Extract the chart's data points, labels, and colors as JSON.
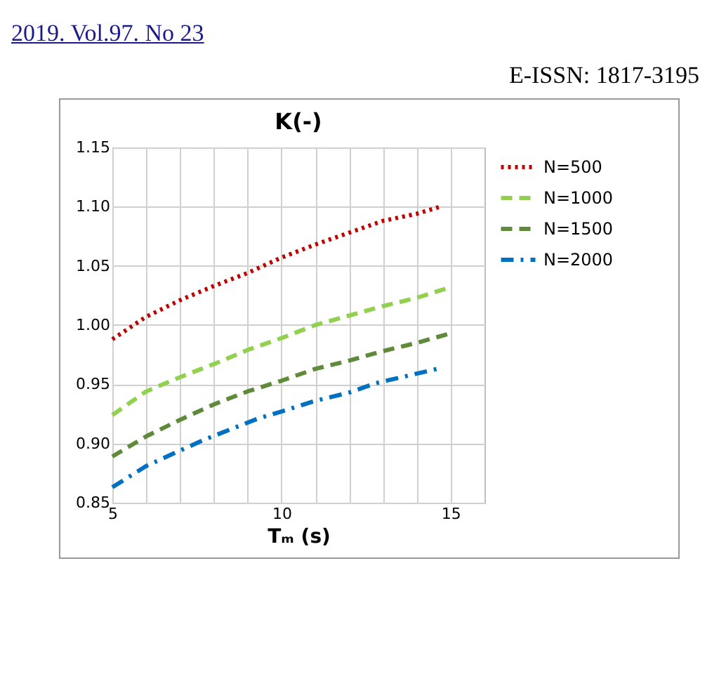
{
  "chart_data": {
    "type": "line",
    "title": "K(-)",
    "xlabel": "Tₘ (s)",
    "annotations": [
      "2019. Vol.97. No 23",
      "E-ISSN: 1817-3195"
    ],
    "xlim": [
      5,
      16
    ],
    "xticks": [
      5,
      {
        "value": 6,
        "label": null
      },
      {
        "value": 7,
        "label": null
      },
      {
        "value": 8,
        "label": null
      },
      {
        "value": 9,
        "label": null
      },
      10,
      {
        "value": 11,
        "label": null
      },
      {
        "value": 12,
        "label": null
      },
      {
        "value": 13,
        "label": null
      },
      {
        "value": 14,
        "label": null
      },
      15
    ],
    "ylim": [
      0.85,
      1.15
    ],
    "yticks": [
      {
        "value": 0.85,
        "label": "0.85"
      },
      {
        "value": 0.9,
        "label": "0.90"
      },
      {
        "value": 0.95,
        "label": "0.95"
      },
      {
        "value": 1,
        "label": "1.00"
      },
      {
        "value": 1.05,
        "label": "1.05"
      },
      {
        "value": 1.1,
        "label": "1.10"
      },
      {
        "value": 1.15,
        "label": "1.15"
      }
    ],
    "grid": true,
    "legend": "right",
    "marker": "none",
    "series": [
      {
        "name": "N=500",
        "color": "#c00000",
        "line_style": "dotted",
        "x": [
          5,
          6,
          7,
          8,
          9,
          10,
          11,
          12,
          13,
          14,
          14.7
        ],
        "values": [
          0.988,
          1.007,
          1.021,
          1.033,
          1.044,
          1.057,
          1.068,
          1.078,
          1.088,
          1.094,
          1.1
        ]
      },
      {
        "name": "N=1000",
        "color": "#92d050",
        "line_style": "dashed",
        "x": [
          5,
          6,
          7,
          8,
          9,
          10,
          11,
          12,
          13,
          14,
          15
        ],
        "values": [
          0.924,
          0.944,
          0.956,
          0.967,
          0.979,
          0.989,
          1.0,
          1.008,
          1.016,
          1.023,
          1.032
        ]
      },
      {
        "name": "N=1500",
        "color": "#5f8a3a",
        "line_style": "dashed",
        "x": [
          5,
          6,
          7,
          8,
          9,
          10,
          11,
          12,
          13,
          14,
          15
        ],
        "values": [
          0.889,
          0.906,
          0.92,
          0.933,
          0.944,
          0.953,
          0.963,
          0.97,
          0.978,
          0.985,
          0.993
        ]
      },
      {
        "name": "N=2000",
        "color": "#0070c0",
        "line_style": "dashdot",
        "x": [
          5,
          6,
          7,
          7.7,
          9.3,
          10,
          11,
          12,
          12.8,
          14,
          14.6
        ],
        "values": [
          0.863,
          0.881,
          0.894,
          0.903,
          0.921,
          0.927,
          0.936,
          0.943,
          0.951,
          0.959,
          0.963
        ]
      }
    ]
  }
}
